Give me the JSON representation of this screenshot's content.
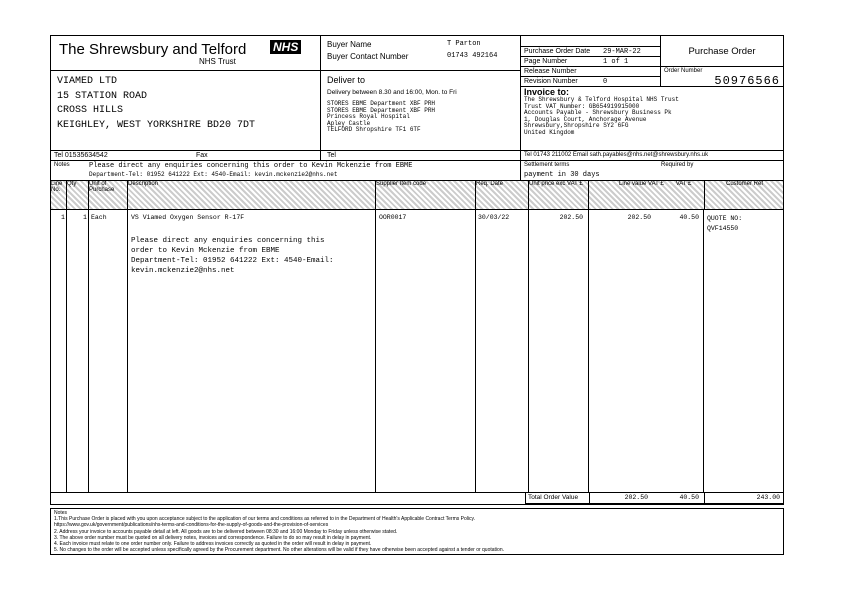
{
  "org": {
    "name": "The Shrewsbury and Telford",
    "trust": "NHS Trust",
    "logo": "NHS",
    "logo_color": "#005EB8"
  },
  "supplier": {
    "lines": [
      "VIAMED LTD",
      "15 STATION ROAD",
      "CROSS HILLS",
      "KEIGHLEY, WEST YORKSHIRE BD20 7DT"
    ],
    "tel": "Tel 01535634542",
    "fax": "Fax"
  },
  "buyer": {
    "name_label": "Buyer Name",
    "name": "T Parton",
    "contact_label": "Buyer Contact Number",
    "contact": "01743 492164"
  },
  "delivery": {
    "title": "Deliver to",
    "hours": "Delivery between 8.30 and 16:00, Mon. to Fri",
    "lines": [
      "STORES EBME Department   XBF   PRH",
      "STORES EBME Department   XBF   PRH",
      "Princess Royal Hospital",
      "Apley Castle",
      "TELFORD Shropshire TF1 6TF"
    ],
    "tel": "Tel"
  },
  "po": {
    "date_label": "Purchase Order Date",
    "date": "29-MAR-22",
    "page_label": "Page Number",
    "page": "1 of 1",
    "release_label": "Release Number",
    "release": "",
    "revision_label": "Revision Number",
    "revision": "0",
    "title": "Purchase Order",
    "order_label": "Order Number",
    "order_number": "50976566"
  },
  "invoice": {
    "title": "Invoice to:",
    "lines": [
      "The Shrewsbury & Telford Hospital NHS Trust",
      "Trust VAT Number: GB654919915000",
      "Accounts Payable - Shrewsbury Business Pk",
      "1, Douglas Court, Anchorage Avenue",
      "Shrewsbury,Shropshire SY2 6FG",
      "United Kingdom"
    ],
    "tel": "Tel 01743 211002  Email sath.payables@nhs.net@shrewsbury.nhs.uk"
  },
  "notes": {
    "label": "Notes",
    "text1": "Please direct any enquiries concerning this order to Kevin Mckenzie from EBME",
    "text2": "Department-Tel: 01952 641222 Ext: 4540-Email: kevin.mckenzie2@nhs.net"
  },
  "terms": {
    "label": "Settlement terms",
    "value": "payment in 30 days",
    "required_label": "Required by"
  },
  "table": {
    "headers": [
      "Line No.",
      "Qty",
      "Unit of Purchase",
      "Description",
      "Supplier Item code",
      "Req. Date",
      "Unit price exc VAT £",
      "Line value VAT £",
      "VAT £",
      "Customer Ref"
    ],
    "rows": [
      {
        "line": "1",
        "qty": "1",
        "unit": "Each",
        "desc": "VS Viamed Oxygen Sensor R-17F",
        "desc_note": [
          "Please direct any enquiries concerning this",
          "order to Kevin Mckenzie from EBME",
          "Department-Tel: 01952 641222 Ext: 4540-Email:",
          "kevin.mckenzie2@nhs.net"
        ],
        "code": "OOR0017",
        "date": "30/03/22",
        "unit_price": "202.50",
        "line_value": "202.50",
        "vat": "40.50",
        "ref": [
          "QUOTE NO:",
          "QVF14550"
        ]
      }
    ],
    "total_label": "Total Order Value",
    "total_net": "202.50",
    "total_vat": "40.50",
    "total_gross": "243.00"
  },
  "terms_footer": {
    "label": "Notes",
    "items": [
      "1.This Purchase Order is placed with you upon acceptance subject to the application of our terms and conditions as referred to in the Department of Health's Applicable Contract Terms Policy.",
      "  https://www.gov.uk/government/publications/nhs-terms-and-conditions-for-the-supply-of-goods-and-the-provision-of-services",
      "2. Address your invoice to accounts payable detail at left. All goods are to be delivered between 08:30 and 16:00 Monday to Friday unless otherwise stated.",
      "3. The above order number must be quoted on all delivery notes, invoices and correspondence. Failure to do so may result in delay in payment.",
      "4. Each invoice must relate to one order number only. Failure to address invoices correctly as quoted in the order will result in delay in payment.",
      "5. No changes to the order will be accepted unless specifically agreed by the Procurement department. No other alterations will be valid if they have otherwise been accepted against a tender or quotation."
    ]
  }
}
